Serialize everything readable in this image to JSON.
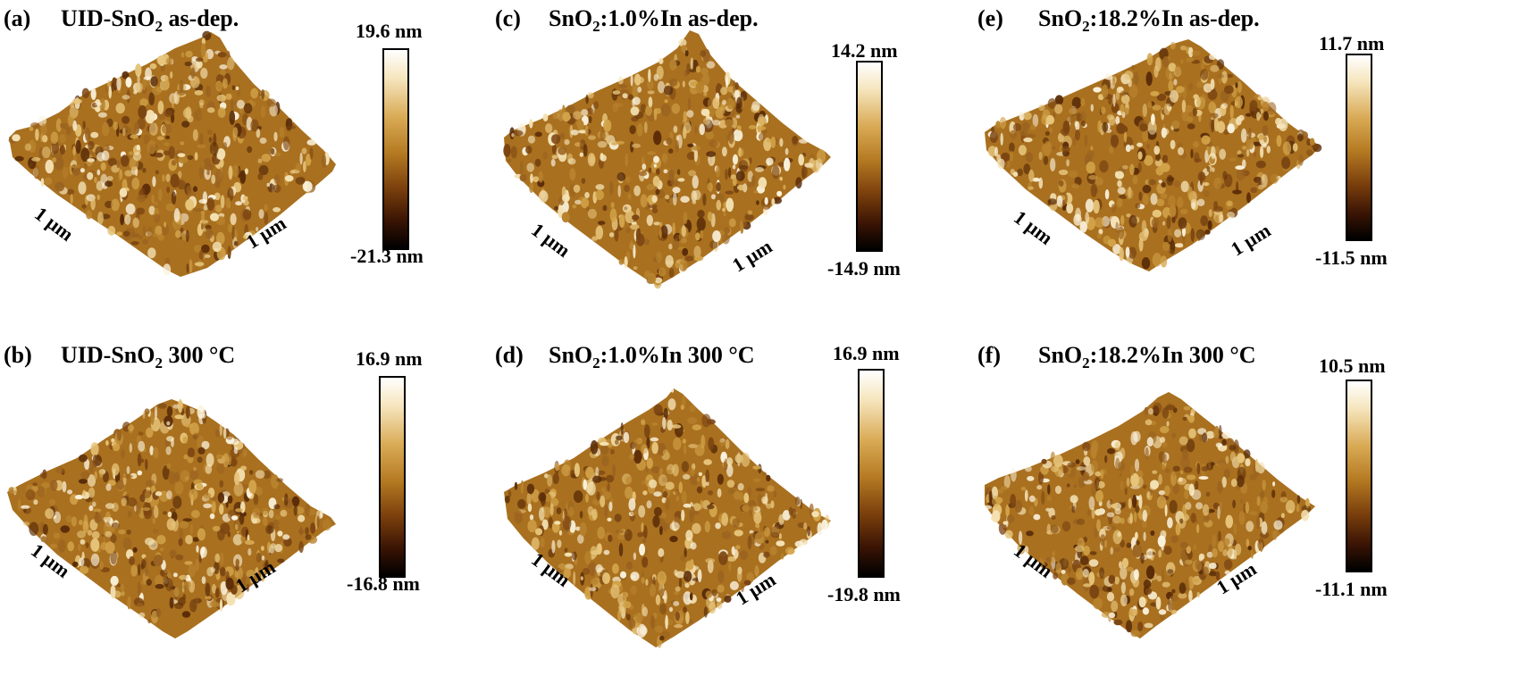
{
  "panels": [
    {
      "id": "a",
      "label": "(a)",
      "title_main": "UID-SnO",
      "title_sub": "2",
      "title_rest": " as-dep.",
      "axis_left": "1 µm",
      "axis_right": "1 µm",
      "cb_max": "19.6 nm",
      "cb_min": "-21.3 nm"
    },
    {
      "id": "b",
      "label": "(b)",
      "title_main": "UID-SnO",
      "title_sub": "2",
      "title_rest": " 300 °C",
      "axis_left": "1 µm",
      "axis_right": "1 µm",
      "cb_max": "16.9 nm",
      "cb_min": "-16.8 nm"
    },
    {
      "id": "c",
      "label": "(c)",
      "title_main": "SnO",
      "title_sub": "2",
      "title_rest": ":1.0%In as-dep.",
      "axis_left": "1 µm",
      "axis_right": "1 µm",
      "cb_max": "14.2 nm",
      "cb_min": "-14.9 nm"
    },
    {
      "id": "d",
      "label": "(d)",
      "title_main": "SnO",
      "title_sub": "2",
      "title_rest": ":1.0%In 300 °C",
      "axis_left": "1 µm",
      "axis_right": "1 µm",
      "cb_max": "16.9 nm",
      "cb_min": "-19.8 nm"
    },
    {
      "id": "e",
      "label": "(e)",
      "title_main": "SnO",
      "title_sub": "2",
      "title_rest": ":18.2%In as-dep.",
      "axis_left": "1 µm",
      "axis_right": "1 µm",
      "cb_max": "11.7 nm",
      "cb_min": "-11.5 nm"
    },
    {
      "id": "f",
      "label": "(f)",
      "title_main": "SnO",
      "title_sub": "2",
      "title_rest": ":18.2%In 300 °C",
      "axis_left": "1 µm",
      "axis_right": "1 µm",
      "cb_max": "10.5 nm",
      "cb_min": "-11.1 nm"
    }
  ]
}
